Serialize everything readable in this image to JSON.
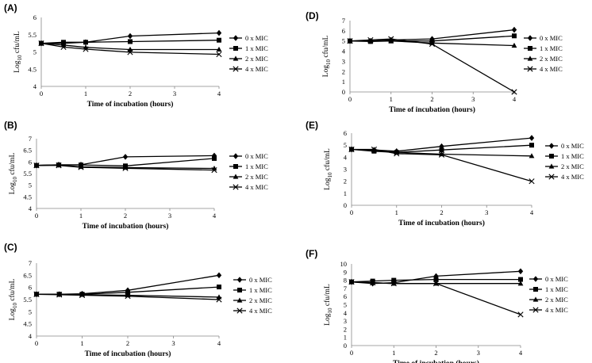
{
  "legend_labels": [
    "0 x MIC",
    "1 x MIC",
    "2 x MIC",
    "4 x MIC"
  ],
  "chart_data": [
    {
      "panel": "(A)",
      "type": "line",
      "xlabel": "Time of incubation (hours)",
      "ylabel": "Log10 cfu/mL",
      "xlim": [
        0,
        4
      ],
      "ylim": [
        4,
        6
      ],
      "yticks": [
        4,
        4.5,
        5,
        5.5,
        6
      ],
      "xticks": [
        0,
        1,
        2,
        3,
        4
      ],
      "x": [
        0,
        0.5,
        1,
        2,
        4
      ],
      "series": [
        {
          "name": "0 x MIC",
          "marker": "diamond",
          "values": [
            5.25,
            5.25,
            5.28,
            5.46,
            5.55
          ]
        },
        {
          "name": "1 x MIC",
          "marker": "square",
          "values": [
            5.25,
            5.28,
            5.28,
            5.3,
            5.34
          ]
        },
        {
          "name": "2 x MIC",
          "marker": "triangle",
          "values": [
            5.25,
            5.2,
            5.13,
            5.07,
            5.07
          ]
        },
        {
          "name": "4 x MIC",
          "marker": "x",
          "values": [
            5.25,
            5.14,
            5.08,
            4.99,
            4.93
          ]
        }
      ]
    },
    {
      "panel": "(B)",
      "type": "line",
      "xlabel": "Time of incubation (hours)",
      "ylabel": "Log10 cfu/mL",
      "xlim": [
        0,
        4
      ],
      "ylim": [
        4,
        7
      ],
      "yticks": [
        4,
        4.5,
        5,
        5.5,
        6,
        6.5,
        7
      ],
      "xticks": [
        0,
        1,
        2,
        3,
        4
      ],
      "x": [
        0,
        0.5,
        1,
        2,
        4
      ],
      "series": [
        {
          "name": "0 x MIC",
          "marker": "diamond",
          "values": [
            5.85,
            5.88,
            5.88,
            6.22,
            6.27
          ]
        },
        {
          "name": "1 x MIC",
          "marker": "square",
          "values": [
            5.85,
            5.87,
            5.87,
            5.83,
            6.15
          ]
        },
        {
          "name": "2 x MIC",
          "marker": "triangle",
          "values": [
            5.85,
            5.87,
            5.79,
            5.76,
            5.72
          ]
        },
        {
          "name": "4 x MIC",
          "marker": "x",
          "values": [
            5.85,
            5.85,
            5.77,
            5.73,
            5.65
          ]
        }
      ]
    },
    {
      "panel": "(C)",
      "type": "line",
      "xlabel": "Time of incubation (hours)",
      "ylabel": "Log10 cfu/mL",
      "xlim": [
        0,
        4
      ],
      "ylim": [
        4,
        7
      ],
      "yticks": [
        4,
        4.5,
        5,
        5.5,
        6,
        6.5,
        7
      ],
      "xticks": [
        0,
        1,
        2,
        3,
        4
      ],
      "x": [
        0,
        0.5,
        1,
        2,
        4
      ],
      "series": [
        {
          "name": "0 x MIC",
          "marker": "diamond",
          "values": [
            5.72,
            5.72,
            5.74,
            5.88,
            6.5
          ]
        },
        {
          "name": "1 x MIC",
          "marker": "square",
          "values": [
            5.72,
            5.72,
            5.72,
            5.8,
            6.02
          ]
        },
        {
          "name": "2 x MIC",
          "marker": "triangle",
          "values": [
            5.72,
            5.72,
            5.7,
            5.68,
            5.6
          ]
        },
        {
          "name": "4 x MIC",
          "marker": "x",
          "values": [
            5.72,
            5.7,
            5.68,
            5.64,
            5.5
          ]
        }
      ]
    },
    {
      "panel": "(D)",
      "type": "line",
      "xlabel": "Time of incubation (hours)",
      "ylabel": "Log10 cfu/mL",
      "xlim": [
        0,
        4
      ],
      "ylim": [
        0,
        7
      ],
      "yticks": [
        0,
        1,
        2,
        3,
        4,
        5,
        6,
        7
      ],
      "xticks": [
        0,
        1,
        2,
        3,
        4
      ],
      "x": [
        0,
        0.5,
        1,
        2,
        4
      ],
      "series": [
        {
          "name": "0 x MIC",
          "marker": "diamond",
          "values": [
            5.0,
            5.0,
            5.1,
            5.2,
            6.1
          ]
        },
        {
          "name": "1 x MIC",
          "marker": "square",
          "values": [
            5.0,
            4.95,
            5.0,
            5.0,
            5.5
          ]
        },
        {
          "name": "2 x MIC",
          "marker": "triangle",
          "values": [
            5.0,
            5.0,
            5.0,
            4.8,
            4.55
          ]
        },
        {
          "name": "4 x MIC",
          "marker": "x",
          "values": [
            5.0,
            5.1,
            5.2,
            4.7,
            0.0
          ]
        }
      ]
    },
    {
      "panel": "(E)",
      "type": "line",
      "xlabel": "Time of incubation (hours)",
      "ylabel": "Log10 cfu/mL",
      "xlim": [
        0,
        4
      ],
      "ylim": [
        0,
        6
      ],
      "yticks": [
        0,
        1,
        2,
        3,
        4,
        5,
        6
      ],
      "xticks": [
        0,
        1,
        2,
        3,
        4
      ],
      "x": [
        0,
        0.5,
        1,
        2,
        4
      ],
      "series": [
        {
          "name": "0 x MIC",
          "marker": "diamond",
          "values": [
            4.65,
            4.6,
            4.5,
            4.9,
            5.6
          ]
        },
        {
          "name": "1 x MIC",
          "marker": "square",
          "values": [
            4.65,
            4.5,
            4.4,
            4.6,
            5.0
          ]
        },
        {
          "name": "2 x MIC",
          "marker": "triangle",
          "values": [
            4.65,
            4.55,
            4.4,
            4.25,
            4.1
          ]
        },
        {
          "name": "4 x MIC",
          "marker": "x",
          "values": [
            4.65,
            4.65,
            4.3,
            4.2,
            2.0
          ]
        }
      ]
    },
    {
      "panel": "(F)",
      "type": "line",
      "xlabel": "Time of incubation (hours)",
      "ylabel": "Log10 cfu/mL",
      "xlim": [
        0,
        4
      ],
      "ylim": [
        0,
        10
      ],
      "yticks": [
        0,
        1,
        2,
        3,
        4,
        5,
        6,
        7,
        8,
        9,
        10
      ],
      "xticks": [
        0,
        1,
        2,
        3,
        4
      ],
      "x": [
        0,
        0.5,
        1,
        2,
        4
      ],
      "series": [
        {
          "name": "0 x MIC",
          "marker": "diamond",
          "values": [
            7.8,
            7.6,
            7.7,
            8.5,
            9.1
          ]
        },
        {
          "name": "1 x MIC",
          "marker": "square",
          "values": [
            7.8,
            7.9,
            8.0,
            8.1,
            8.1
          ]
        },
        {
          "name": "2 x MIC",
          "marker": "triangle",
          "values": [
            7.8,
            7.7,
            7.6,
            7.6,
            7.6
          ]
        },
        {
          "name": "4 x MIC",
          "marker": "x",
          "values": [
            7.8,
            7.7,
            7.6,
            7.6,
            3.8
          ]
        }
      ]
    }
  ]
}
